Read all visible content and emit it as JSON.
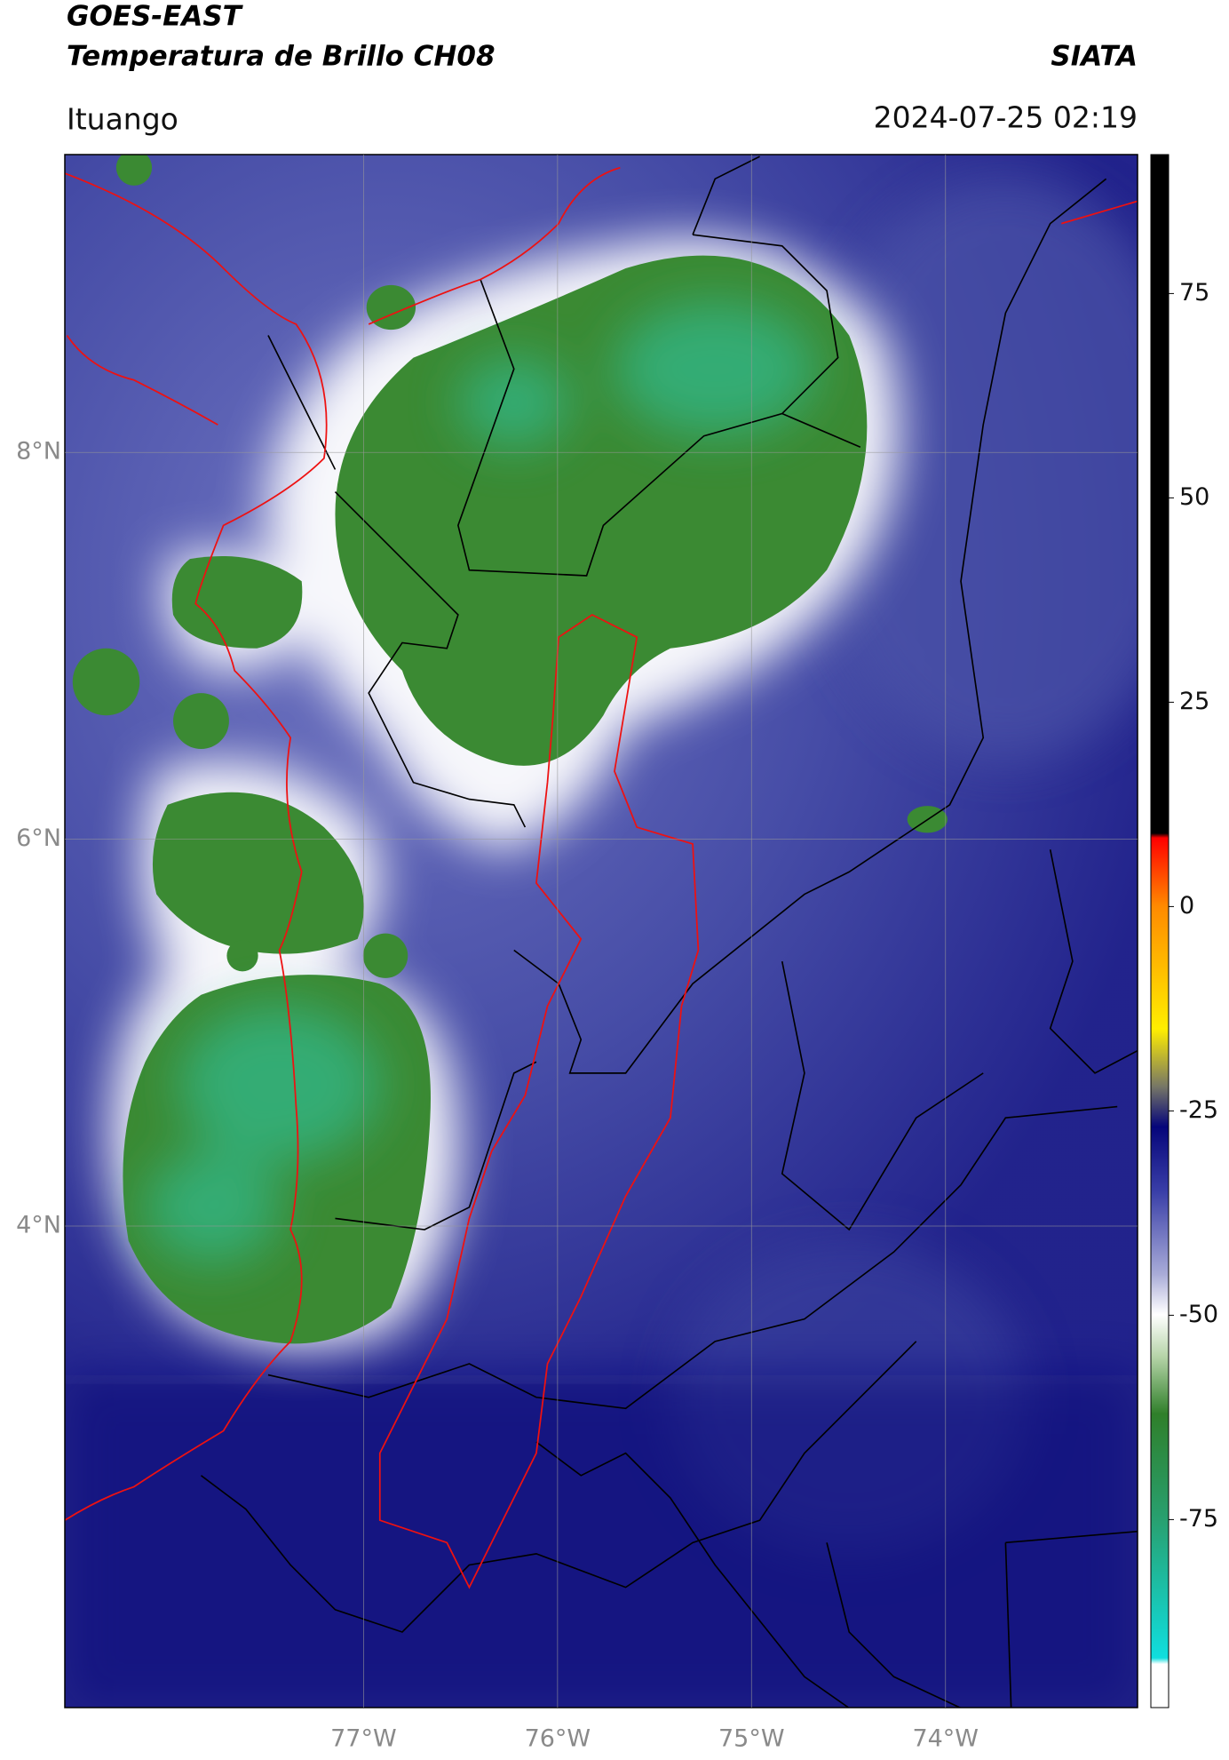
{
  "header": {
    "title": "GOES-EAST",
    "subtitle": "Temperatura de Brillo CH08",
    "brand": "SIATA",
    "location": "Ituango",
    "datetime": "2024-07-25 02:19"
  },
  "map": {
    "xlim": [
      -78.54,
      -73.01
    ],
    "ylim": [
      1.51,
      9.54
    ],
    "xticks": [
      {
        "value": -77,
        "label": "77°W"
      },
      {
        "value": -76,
        "label": "76°W"
      },
      {
        "value": -75,
        "label": "75°W"
      },
      {
        "value": -74,
        "label": "74°W"
      }
    ],
    "yticks": [
      {
        "value": 8,
        "label": "8°N"
      },
      {
        "value": 6,
        "label": "6°N"
      },
      {
        "value": 4,
        "label": "4°N"
      }
    ]
  },
  "colorbar": {
    "lim": [
      -98,
      92
    ],
    "ticks": [
      75,
      50,
      25,
      0,
      -25,
      -50,
      -75
    ]
  }
}
